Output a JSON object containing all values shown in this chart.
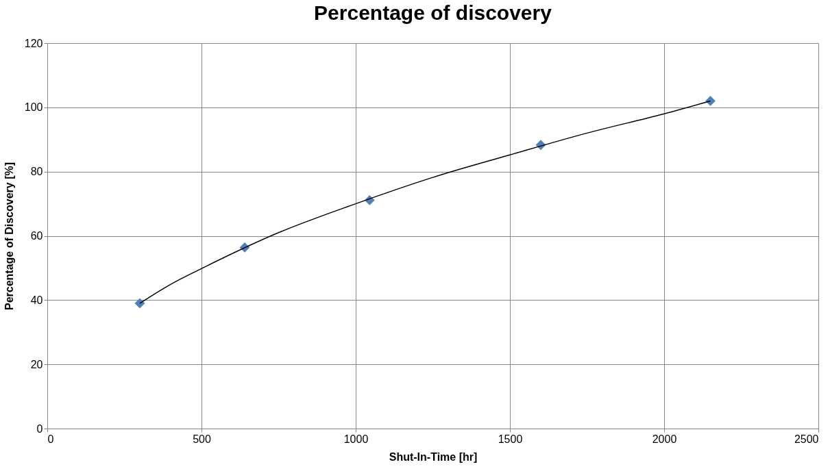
{
  "chart_data": {
    "type": "scatter",
    "title": "Percentage of discovery",
    "xlabel": "Shut-In-Time [hr]",
    "ylabel": "Percentage of Discovery [%]",
    "series": [
      {
        "color": "#4f81bd",
        "marker": "diamond",
        "x": [
          300,
          640,
          1045,
          1600,
          2150
        ],
        "values": [
          39,
          56.4,
          71.1,
          88.3,
          102
        ]
      },
      {
        "type": "line",
        "color": "#000000",
        "marker": "none",
        "line_style": "solid",
        "x": [
          300,
          400,
          500,
          750,
          1000,
          1250,
          1500,
          1750,
          2000,
          2150
        ],
        "values": [
          39,
          44.9,
          49.8,
          61,
          70,
          78.2,
          85.2,
          92,
          98,
          102
        ]
      }
    ],
    "xlim": [
      0,
      2500
    ],
    "xticks": [
      0,
      500,
      1000,
      1500,
      2000,
      2500
    ],
    "ylim": [
      0,
      120
    ],
    "yticks": [
      0,
      20,
      40,
      60,
      80,
      100,
      120
    ],
    "grid": true
  }
}
